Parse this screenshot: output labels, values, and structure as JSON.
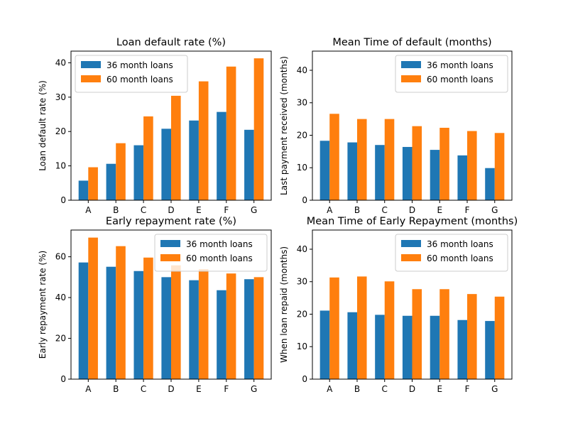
{
  "chart_data": [
    {
      "type": "bar",
      "title": "Loan default rate (%)",
      "xlabel": "",
      "ylabel": "Loan default rate (%)",
      "categories": [
        "A",
        "B",
        "C",
        "D",
        "E",
        "F",
        "G"
      ],
      "series": [
        {
          "name": "36 month loans",
          "values": [
            5.7,
            10.6,
            16.0,
            20.8,
            23.2,
            25.7,
            20.5
          ]
        },
        {
          "name": "60 month loans",
          "values": [
            9.6,
            16.6,
            24.4,
            30.4,
            34.6,
            38.9,
            41.3
          ]
        }
      ],
      "ylim": [
        0,
        43.4
      ],
      "yticks": [
        0,
        10,
        20,
        30,
        40
      ],
      "legend": "upper-left"
    },
    {
      "type": "bar",
      "title": "Mean Time of default (months)",
      "xlabel": "",
      "ylabel": "Last payment received (months)",
      "categories": [
        "A",
        "B",
        "C",
        "D",
        "E",
        "F",
        "G"
      ],
      "series": [
        {
          "name": "36 month loans",
          "values": [
            18.3,
            17.8,
            17.0,
            16.4,
            15.5,
            13.8,
            9.9
          ]
        },
        {
          "name": "60 month loans",
          "values": [
            26.6,
            25.0,
            25.0,
            22.8,
            22.3,
            21.3,
            20.7
          ]
        }
      ],
      "ylim": [
        0,
        45.9
      ],
      "yticks": [
        0,
        10,
        20,
        30,
        40
      ],
      "legend": "upper-right"
    },
    {
      "type": "bar",
      "title": "Early repayment rate (%)",
      "xlabel": "",
      "ylabel": "Early repayment rate (%)",
      "categories": [
        "A",
        "B",
        "C",
        "D",
        "E",
        "F",
        "G"
      ],
      "series": [
        {
          "name": "36 month loans",
          "values": [
            57.2,
            55.1,
            53.0,
            50.0,
            48.5,
            43.6,
            49.0
          ]
        },
        {
          "name": "60 month loans",
          "values": [
            69.4,
            65.2,
            59.6,
            55.8,
            53.9,
            51.8,
            50.0
          ]
        }
      ],
      "ylim": [
        0,
        73.1
      ],
      "yticks": [
        0,
        20,
        40,
        60
      ],
      "legend": "upper-right"
    },
    {
      "type": "bar",
      "title": "Mean Time of Early Repayment (months)",
      "xlabel": "",
      "ylabel": "When loan repaid (months)",
      "categories": [
        "A",
        "B",
        "C",
        "D",
        "E",
        "F",
        "G"
      ],
      "series": [
        {
          "name": "36 month loans",
          "values": [
            21.1,
            20.6,
            19.8,
            19.5,
            19.5,
            18.2,
            17.9
          ]
        },
        {
          "name": "60 month loans",
          "values": [
            31.3,
            31.6,
            30.1,
            27.7,
            27.7,
            26.2,
            25.4
          ]
        }
      ],
      "ylim": [
        0,
        45.9
      ],
      "yticks": [
        0,
        10,
        20,
        30,
        40
      ],
      "legend": "upper-right"
    }
  ],
  "colors": {
    "series": [
      "#1f77b4",
      "#ff7f0e"
    ],
    "axis": "#000000",
    "legend_border": "#cccccc"
  }
}
